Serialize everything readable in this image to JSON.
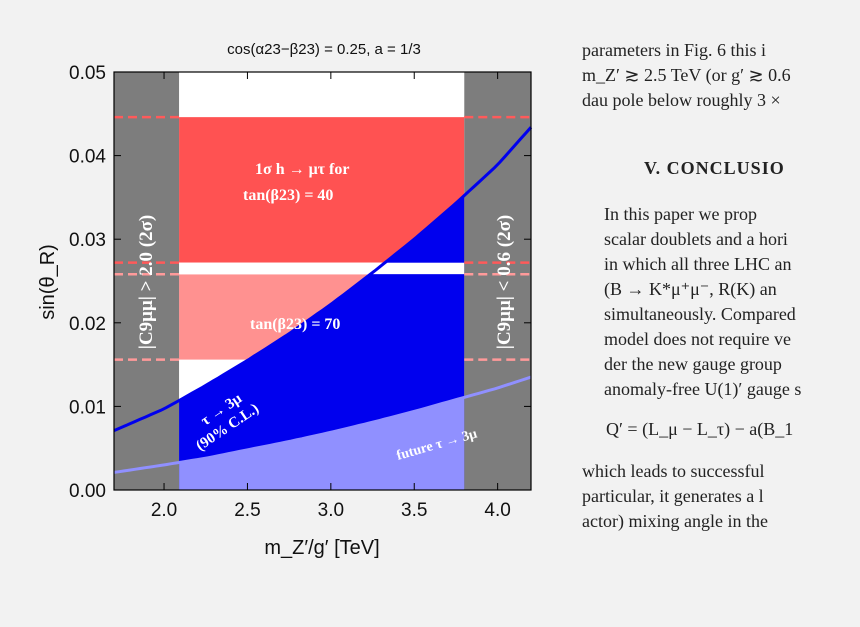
{
  "chart_data": {
    "type": "area",
    "title": "cos(α23−β23) = 0.25, a = 1/3",
    "xlabel": "m_Z′/g′ [TeV]",
    "ylabel": "sin(θ_R)",
    "xlim": [
      1.7,
      4.2
    ],
    "ylim": [
      0.0,
      0.05
    ],
    "x_ticks": [
      2.0,
      2.5,
      3.0,
      3.5,
      4.0
    ],
    "x_tick_labels": [
      "2.0",
      "2.5",
      "3.0",
      "3.5",
      "4.0"
    ],
    "y_ticks": [
      0.0,
      0.01,
      0.02,
      0.03,
      0.04,
      0.05
    ],
    "y_tick_labels": [
      "0.00",
      "0.01",
      "0.02",
      "0.03",
      "0.04",
      "0.05"
    ],
    "excluded_regions": [
      {
        "label": "|C9μμ| > 2.0 (2σ)",
        "x_range": [
          1.7,
          2.09
        ],
        "color": "#7d7d7d"
      },
      {
        "label": "|C9μμ| < 0.6 (2σ)",
        "x_range": [
          3.8,
          4.2
        ],
        "color": "#7d7d7d"
      }
    ],
    "bands": [
      {
        "label": "1σ h → μτ for tan(β23) = 40",
        "y_range": [
          0.0272,
          0.0446
        ],
        "color": "#ff5252"
      },
      {
        "label": "tan(β23) = 70",
        "y_range": [
          0.0156,
          0.0258
        ],
        "color": "#ff9190"
      }
    ],
    "series": [
      {
        "name": "τ → 3μ (90% C.L.)",
        "color": "#0000ee",
        "x": [
          1.7,
          2.0,
          2.25,
          2.5,
          2.75,
          3.0,
          3.25,
          3.5,
          3.75,
          4.0,
          4.2
        ],
        "y": [
          0.0071,
          0.0097,
          0.0125,
          0.0155,
          0.0187,
          0.0222,
          0.026,
          0.03,
          0.0343,
          0.0389,
          0.0434
        ]
      },
      {
        "name": "future τ → 3μ",
        "color": "#9090ff",
        "x": [
          1.7,
          2.0,
          2.25,
          2.5,
          2.75,
          3.0,
          3.25,
          3.5,
          3.75,
          4.0,
          4.2
        ],
        "y": [
          0.0021,
          0.003,
          0.0038,
          0.0048,
          0.0058,
          0.0069,
          0.0081,
          0.0094,
          0.0108,
          0.0122,
          0.0135
        ]
      }
    ],
    "grid": false
  },
  "annotations": {
    "left_region": "|C9μμ| > 2.0 (2σ)",
    "right_region": "|C9μμ| < 0.6 (2σ)",
    "band40_line1": "1σ h → μτ for",
    "band40_line2": "tan(β23) = 40",
    "band70": "tan(β23) = 70",
    "tau_line1": "τ → 3μ",
    "tau_line2": "(90% C.L.)",
    "future": "future τ → 3μ"
  },
  "paper": {
    "intro_lines": [
      "parameters in Fig. 6 this i",
      "m_Z′ ≳ 2.5 TeV (or g′ ≳ 0.6",
      "dau pole below roughly 3 ×"
    ],
    "heading": "V.   CONCLUSIO",
    "para_lines": [
      "In this paper we prop",
      "scalar doublets and a hori",
      "in which all three LHC an",
      "(B → K*μ⁺μ⁻, R(K) an",
      "simultaneously. Compared",
      "model does not require ve",
      "der the new gauge group",
      "anomaly-free U(1)′ gauge s"
    ],
    "equation": "Q′ = (L_μ − L_τ) − a(B_1",
    "after_lines": [
      "which leads to successful",
      "particular, it generates a l",
      "actor) mixing angle in the"
    ]
  }
}
